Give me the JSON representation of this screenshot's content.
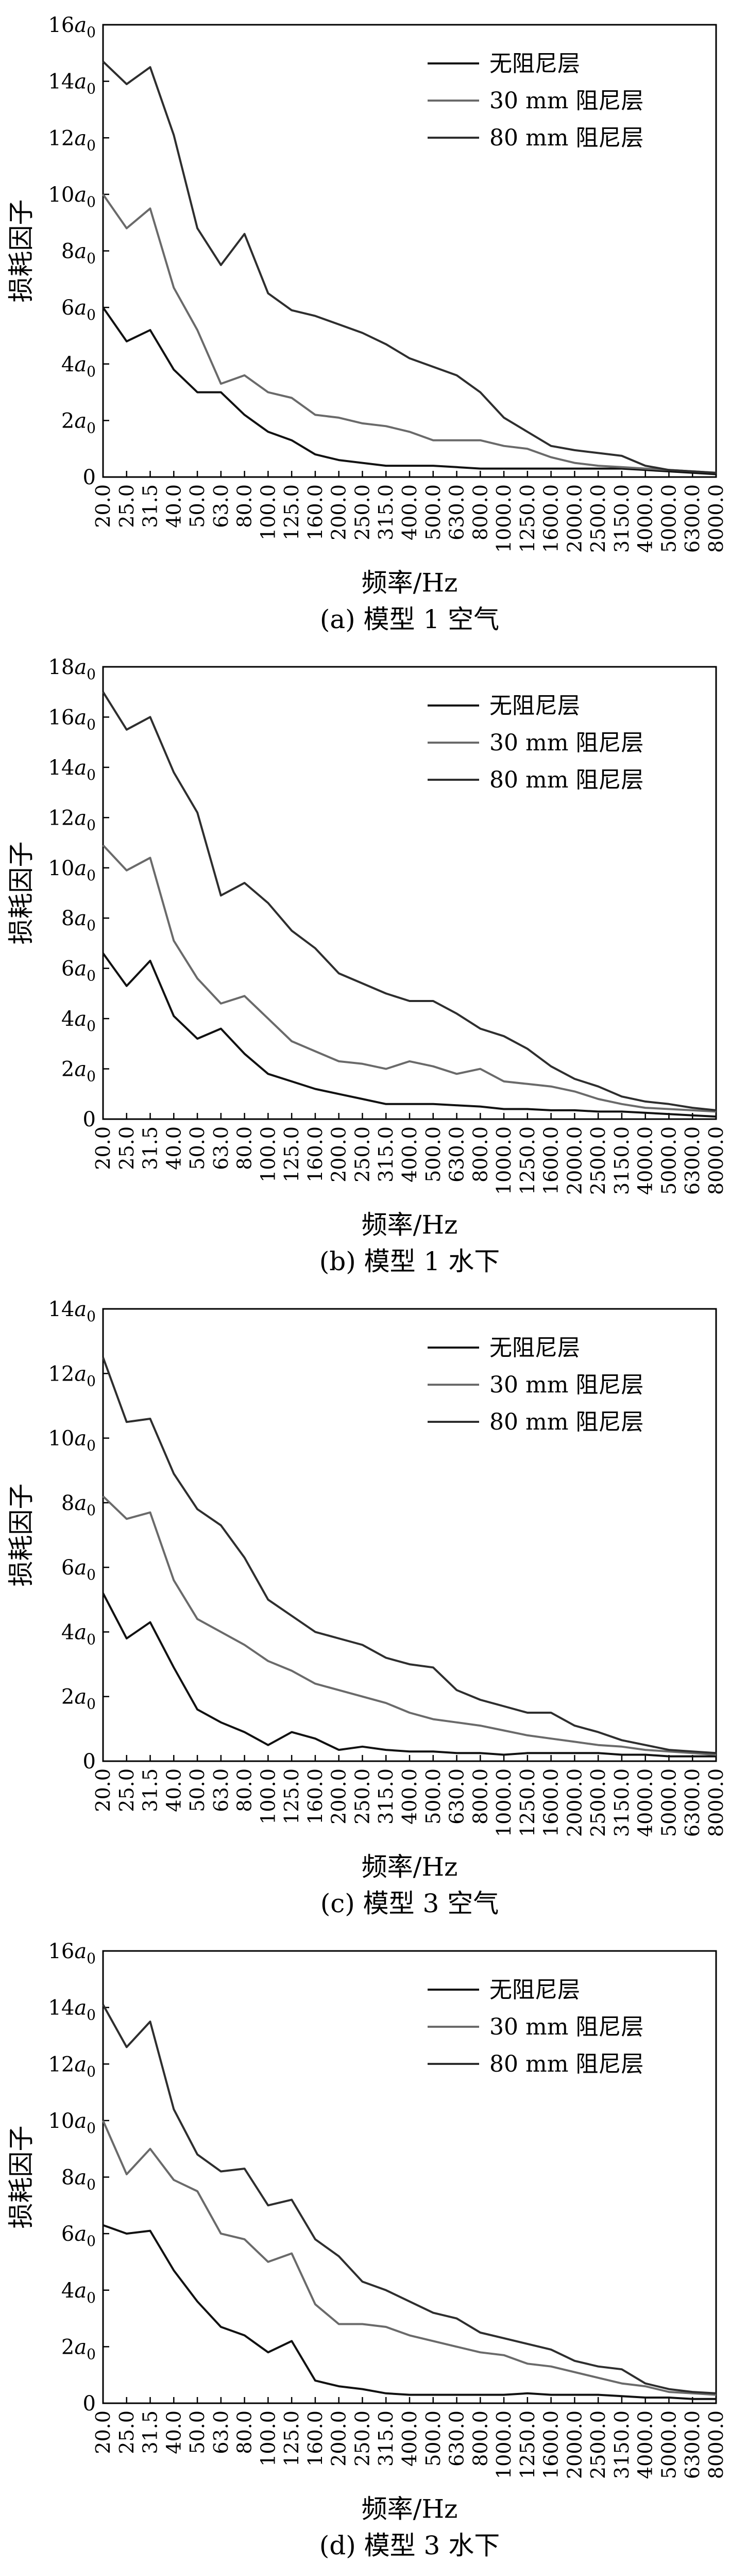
{
  "colors": {
    "axis": "#000000",
    "series": [
      "#111111",
      "#6a6a6a",
      "#2e2e2e"
    ]
  },
  "chart_data": [
    {
      "type": "line",
      "panel_caption": "(a) 模型 1 空气",
      "xlabel": "频率/Hz",
      "ylabel": "损耗因子",
      "y_unit": "a",
      "y_unit_sub": "0",
      "ylim": [
        0,
        16
      ],
      "yticks": [
        0,
        2,
        4,
        6,
        8,
        10,
        12,
        14,
        16
      ],
      "x": [
        "20.0",
        "25.0",
        "31.5",
        "40.0",
        "50.0",
        "63.0",
        "80.0",
        "100.0",
        "125.0",
        "160.0",
        "200.0",
        "250.0",
        "315.0",
        "400.0",
        "500.0",
        "630.0",
        "800.0",
        "1000.0",
        "1250.0",
        "1600.0",
        "2000.0",
        "2500.0",
        "3150.0",
        "4000.0",
        "5000.0",
        "6300.0",
        "8000.0"
      ],
      "legend_position": "top-right",
      "series": [
        {
          "name": "无阻尼层",
          "values": [
            6.0,
            4.8,
            5.2,
            3.8,
            3.0,
            3.0,
            2.2,
            1.6,
            1.3,
            0.8,
            0.6,
            0.5,
            0.4,
            0.4,
            0.4,
            0.35,
            0.3,
            0.3,
            0.3,
            0.3,
            0.3,
            0.3,
            0.3,
            0.25,
            0.2,
            0.15,
            0.1
          ]
        },
        {
          "name": "30 mm 阻尼层",
          "values": [
            10.0,
            8.8,
            9.5,
            6.7,
            5.2,
            3.3,
            3.6,
            3.0,
            2.8,
            2.2,
            2.1,
            1.9,
            1.8,
            1.6,
            1.3,
            1.3,
            1.3,
            1.1,
            1.0,
            0.7,
            0.5,
            0.4,
            0.35,
            0.3,
            0.25,
            0.2,
            0.15
          ]
        },
        {
          "name": "80 mm 阻尼层",
          "values": [
            14.7,
            13.9,
            14.5,
            12.1,
            8.8,
            7.5,
            8.6,
            6.5,
            5.9,
            5.7,
            5.4,
            5.1,
            4.7,
            4.2,
            3.9,
            3.6,
            3.0,
            2.1,
            1.6,
            1.1,
            0.95,
            0.85,
            0.75,
            0.4,
            0.25,
            0.2,
            0.15
          ]
        }
      ]
    },
    {
      "type": "line",
      "panel_caption": "(b) 模型 1 水下",
      "xlabel": "频率/Hz",
      "ylabel": "损耗因子",
      "y_unit": "a",
      "y_unit_sub": "0",
      "ylim": [
        0,
        18
      ],
      "yticks": [
        0,
        2,
        4,
        6,
        8,
        10,
        12,
        14,
        16,
        18
      ],
      "x": [
        "20.0",
        "25.0",
        "31.5",
        "40.0",
        "50.0",
        "63.0",
        "80.0",
        "100.0",
        "125.0",
        "160.0",
        "200.0",
        "250.0",
        "315.0",
        "400.0",
        "500.0",
        "630.0",
        "800.0",
        "1000.0",
        "1250.0",
        "1600.0",
        "2000.0",
        "2500.0",
        "3150.0",
        "4000.0",
        "5000.0",
        "6300.0",
        "8000.0"
      ],
      "legend_position": "top-right",
      "series": [
        {
          "name": "无阻尼层",
          "values": [
            6.6,
            5.3,
            6.3,
            4.1,
            3.2,
            3.6,
            2.6,
            1.8,
            1.5,
            1.2,
            1.0,
            0.8,
            0.6,
            0.6,
            0.6,
            0.55,
            0.5,
            0.4,
            0.4,
            0.35,
            0.35,
            0.3,
            0.3,
            0.25,
            0.2,
            0.15,
            0.1
          ]
        },
        {
          "name": "30 mm 阻尼层",
          "values": [
            10.9,
            9.9,
            10.4,
            7.1,
            5.6,
            4.6,
            4.9,
            4.0,
            3.1,
            2.7,
            2.3,
            2.2,
            2.0,
            2.3,
            2.1,
            1.8,
            2.0,
            1.5,
            1.4,
            1.3,
            1.1,
            0.8,
            0.6,
            0.45,
            0.4,
            0.35,
            0.3
          ]
        },
        {
          "name": "80 mm 阻尼层",
          "values": [
            17.0,
            15.5,
            16.0,
            13.8,
            12.2,
            8.9,
            9.4,
            8.6,
            7.5,
            6.8,
            5.8,
            5.4,
            5.0,
            4.7,
            4.7,
            4.2,
            3.6,
            3.3,
            2.8,
            2.1,
            1.6,
            1.3,
            0.9,
            0.7,
            0.6,
            0.45,
            0.35
          ]
        }
      ]
    },
    {
      "type": "line",
      "panel_caption": "(c) 模型 3 空气",
      "xlabel": "频率/Hz",
      "ylabel": "损耗因子",
      "y_unit": "a",
      "y_unit_sub": "0",
      "ylim": [
        0,
        14
      ],
      "yticks": [
        0,
        2,
        4,
        6,
        8,
        10,
        12,
        14
      ],
      "x": [
        "20.0",
        "25.0",
        "31.5",
        "40.0",
        "50.0",
        "63.0",
        "80.0",
        "100.0",
        "125.0",
        "160.0",
        "200.0",
        "250.0",
        "315.0",
        "400.0",
        "500.0",
        "630.0",
        "800.0",
        "1000.0",
        "1250.0",
        "1600.0",
        "2000.0",
        "2500.0",
        "3150.0",
        "4000.0",
        "5000.0",
        "6300.0",
        "8000.0"
      ],
      "legend_position": "top-right",
      "series": [
        {
          "name": "无阻尼层",
          "values": [
            5.2,
            3.8,
            4.3,
            2.9,
            1.6,
            1.2,
            0.9,
            0.5,
            0.9,
            0.7,
            0.35,
            0.45,
            0.35,
            0.3,
            0.3,
            0.25,
            0.25,
            0.2,
            0.25,
            0.25,
            0.25,
            0.25,
            0.2,
            0.2,
            0.15,
            0.15,
            0.15
          ]
        },
        {
          "name": "30 mm 阻尼层",
          "values": [
            8.2,
            7.5,
            7.7,
            5.6,
            4.4,
            4.0,
            3.6,
            3.1,
            2.8,
            2.4,
            2.2,
            2.0,
            1.8,
            1.5,
            1.3,
            1.2,
            1.1,
            0.95,
            0.8,
            0.7,
            0.6,
            0.5,
            0.45,
            0.35,
            0.3,
            0.25,
            0.2
          ]
        },
        {
          "name": "80 mm 阻尼层",
          "values": [
            12.5,
            10.5,
            10.6,
            8.9,
            7.8,
            7.3,
            6.3,
            5.0,
            4.5,
            4.0,
            3.8,
            3.6,
            3.2,
            3.0,
            2.9,
            2.2,
            1.9,
            1.7,
            1.5,
            1.5,
            1.1,
            0.9,
            0.65,
            0.5,
            0.35,
            0.3,
            0.25
          ]
        }
      ]
    },
    {
      "type": "line",
      "panel_caption": "(d) 模型 3 水下",
      "xlabel": "频率/Hz",
      "ylabel": "损耗因子",
      "y_unit": "a",
      "y_unit_sub": "0",
      "ylim": [
        0,
        16
      ],
      "yticks": [
        0,
        2,
        4,
        6,
        8,
        10,
        12,
        14,
        16
      ],
      "x": [
        "20.0",
        "25.0",
        "31.5",
        "40.0",
        "50.0",
        "63.0",
        "80.0",
        "100.0",
        "125.0",
        "160.0",
        "200.0",
        "250.0",
        "315.0",
        "400.0",
        "500.0",
        "630.0",
        "800.0",
        "1000.0",
        "1250.0",
        "1600.0",
        "2000.0",
        "2500.0",
        "3150.0",
        "4000.0",
        "5000.0",
        "6300.0",
        "8000.0"
      ],
      "legend_position": "top-right",
      "series": [
        {
          "name": "无阻尼层",
          "values": [
            6.3,
            6.0,
            6.1,
            4.7,
            3.6,
            2.7,
            2.4,
            1.8,
            2.2,
            0.8,
            0.6,
            0.5,
            0.35,
            0.3,
            0.3,
            0.3,
            0.3,
            0.3,
            0.35,
            0.3,
            0.3,
            0.3,
            0.25,
            0.2,
            0.2,
            0.15,
            0.15
          ]
        },
        {
          "name": "30 mm 阻尼层",
          "values": [
            10.0,
            8.1,
            9.0,
            7.9,
            7.5,
            6.0,
            5.8,
            5.0,
            5.3,
            3.5,
            2.8,
            2.8,
            2.7,
            2.4,
            2.2,
            2.0,
            1.8,
            1.7,
            1.4,
            1.3,
            1.1,
            0.9,
            0.7,
            0.6,
            0.4,
            0.35,
            0.3
          ]
        },
        {
          "name": "80 mm 阻尼层",
          "values": [
            14.1,
            12.6,
            13.5,
            10.4,
            8.8,
            8.2,
            8.3,
            7.0,
            7.2,
            5.8,
            5.2,
            4.3,
            4.0,
            3.6,
            3.2,
            3.0,
            2.5,
            2.3,
            2.1,
            1.9,
            1.5,
            1.3,
            1.2,
            0.7,
            0.5,
            0.4,
            0.35
          ]
        }
      ]
    }
  ]
}
